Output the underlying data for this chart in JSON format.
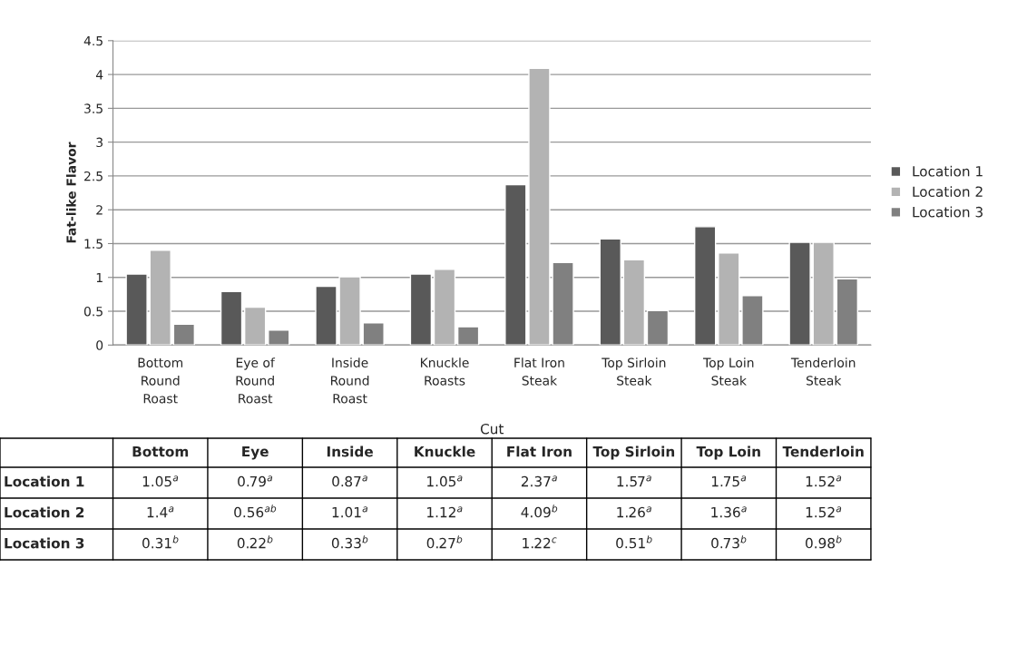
{
  "chart_data": {
    "type": "bar",
    "xlabel": "Cut",
    "ylabel": "Fat-like Flavor",
    "categories": [
      "Bottom\nRound\nRoast",
      "Eye of\nRound\nRoast",
      "Inside\nRound\nRoast",
      "Knuckle\nRoasts",
      "Flat Iron\nSteak",
      "Top Sirloin\nSteak",
      "Top Loin\nSteak",
      "Tenderloin\nSteak"
    ],
    "series": [
      {
        "name": "Location 1",
        "color": "#595959",
        "values": [
          1.05,
          0.79,
          0.87,
          1.05,
          2.37,
          1.57,
          1.75,
          1.52
        ],
        "value_labels": [
          "1.05$^{a}$",
          "0.79$^{a}$",
          "0.87$^{a}$",
          "1.05$^{a}$",
          "2.37$^{a}$",
          "1.57$^{a}$",
          "1.75$^{a}$",
          "1.52$^{a}$"
        ]
      },
      {
        "name": "Location 2",
        "color": "#b3b3b3",
        "values": [
          1.4,
          0.56,
          1.01,
          1.12,
          4.09,
          1.26,
          1.36,
          1.52
        ],
        "value_labels": [
          "1.4$^{a}$",
          "0.56$^{ab}$",
          "1.01$^{a}$",
          "1.12$^{a}$",
          "4.09$^{b}$",
          "1.26$^{a}$",
          "1.36$^{a}$",
          "1.52$^{a}$"
        ]
      },
      {
        "name": "Location 3",
        "color": "#808080",
        "values": [
          0.31,
          0.22,
          0.33,
          0.27,
          1.22,
          0.51,
          0.73,
          0.98
        ],
        "value_labels": [
          "0.31$^{b}$",
          "0.22$^{b}$",
          "0.33$^{b}$",
          "0.27$^{b}$",
          "1.22$^{c}$",
          "0.51$^{b}$",
          "0.73$^{b}$",
          "0.98$^{b}$"
        ]
      }
    ],
    "annotations": [
      "Bottom",
      "Eye",
      "Inside",
      "Knuckle",
      "Flat Iron",
      "Top Sirloin",
      "Top Loin",
      "Tenderloin"
    ],
    "ylim": [
      0,
      4.5
    ],
    "yticks": [
      0,
      0.5,
      1,
      1.5,
      2,
      2.5,
      3,
      3.5,
      4,
      4.5
    ],
    "grid": "y",
    "legend": "right"
  }
}
